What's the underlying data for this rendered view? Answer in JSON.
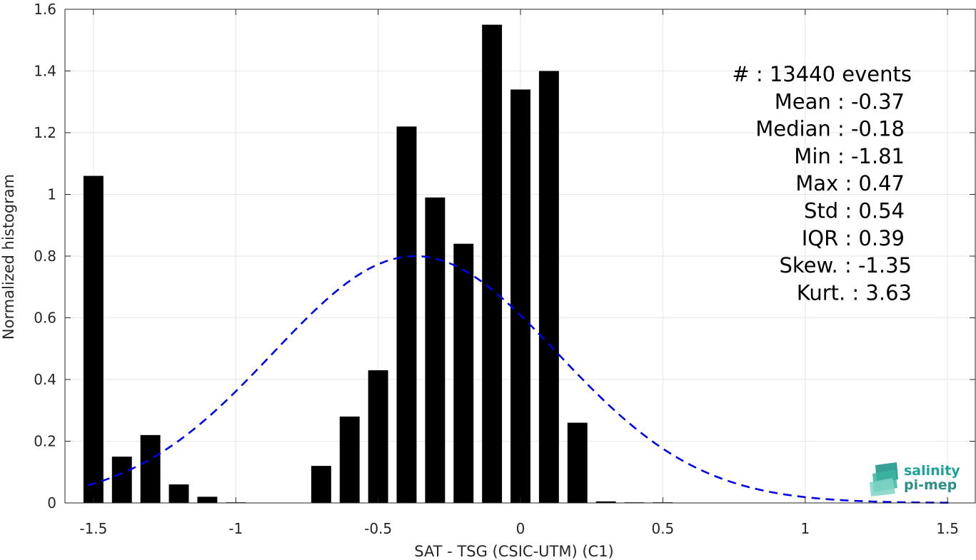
{
  "chart_data": {
    "type": "bar",
    "xlabel": "SAT - TSG (CSIC-UTM) (C1)",
    "ylabel": "Normalized histogram",
    "xlim": [
      -1.6,
      1.6
    ],
    "ylim": [
      0,
      1.6
    ],
    "xticks": [
      -1.5,
      -1,
      -0.5,
      0,
      0.5,
      1,
      1.5
    ],
    "xtick_labels": [
      "-1.5",
      "-1",
      "-0.5",
      "0",
      "0.5",
      "1",
      "1.5"
    ],
    "yticks": [
      0,
      0.2,
      0.4,
      0.6,
      0.8,
      1,
      1.2,
      1.4,
      1.6
    ],
    "ytick_labels": [
      "0",
      "0.2",
      "0.4",
      "0.6",
      "0.8",
      "1",
      "1.2",
      "1.4",
      "1.6"
    ],
    "grid": true,
    "bar_width": 0.07,
    "bar_color": "#000000",
    "bins": [
      {
        "x": -1.5,
        "y": 1.06
      },
      {
        "x": -1.4,
        "y": 0.15
      },
      {
        "x": -1.3,
        "y": 0.22
      },
      {
        "x": -1.2,
        "y": 0.06
      },
      {
        "x": -1.1,
        "y": 0.02
      },
      {
        "x": -1.0,
        "y": 0.002
      },
      {
        "x": -0.9,
        "y": 0.0
      },
      {
        "x": -0.8,
        "y": 0.0
      },
      {
        "x": -0.7,
        "y": 0.12
      },
      {
        "x": -0.6,
        "y": 0.28
      },
      {
        "x": -0.5,
        "y": 0.43
      },
      {
        "x": -0.4,
        "y": 1.22
      },
      {
        "x": -0.3,
        "y": 0.99
      },
      {
        "x": -0.2,
        "y": 0.84
      },
      {
        "x": -0.1,
        "y": 1.55
      },
      {
        "x": 0.0,
        "y": 1.34
      },
      {
        "x": 0.1,
        "y": 1.4
      },
      {
        "x": 0.2,
        "y": 0.26
      },
      {
        "x": 0.3,
        "y": 0.005
      },
      {
        "x": 0.4,
        "y": 0.002
      },
      {
        "x": 0.5,
        "y": 0.002
      }
    ],
    "fit_curve": {
      "style": "dashed",
      "color": "#0000e6",
      "mean": -0.37,
      "std": 0.5,
      "peak": 0.8,
      "x_range": [
        -1.52,
        1.52
      ]
    },
    "stats": [
      "#  : 13440 events",
      "Mean : -0.37",
      "Median : -0.18",
      "Min : -1.81",
      "Max : 0.47",
      "Std : 0.54",
      "IQR : 0.39",
      "Skew. : -1.35",
      "Kurt. : 3.63"
    ]
  },
  "logo": {
    "line1": "salinity",
    "line2": "pi-mep",
    "color1": "#1aa39a",
    "color2": "#2a8f86"
  }
}
